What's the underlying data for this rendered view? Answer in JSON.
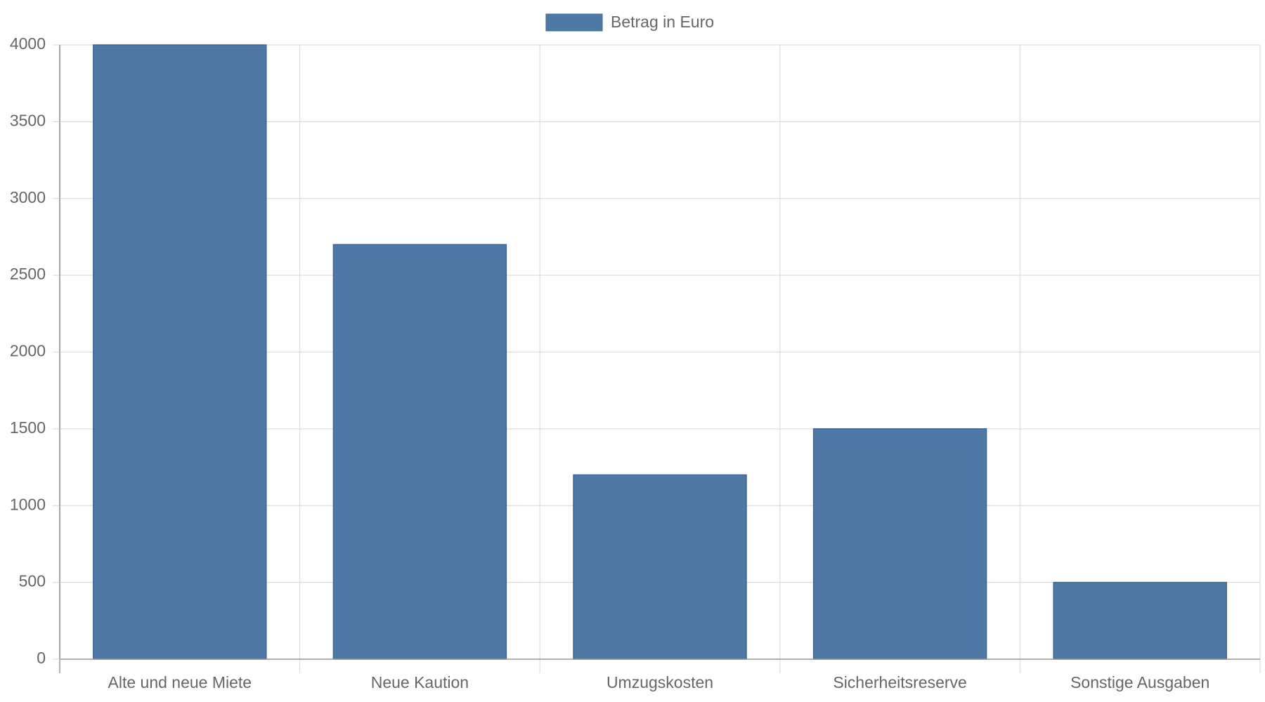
{
  "chart_data": {
    "type": "bar",
    "categories": [
      "Alte und neue Miete",
      "Neue Kaution",
      "Umzugskosten",
      "Sicherheitsreserve",
      "Sonstige Ausgaben"
    ],
    "series": [
      {
        "name": "Betrag in Euro",
        "color": "#4e79a7",
        "values": [
          4000,
          2700,
          1200,
          1500,
          500
        ]
      }
    ],
    "ylim": [
      0,
      4000
    ],
    "yticks": [
      0,
      500,
      1000,
      1500,
      2000,
      2500,
      3000,
      3500,
      4000
    ],
    "grid": true,
    "legend": "top"
  }
}
